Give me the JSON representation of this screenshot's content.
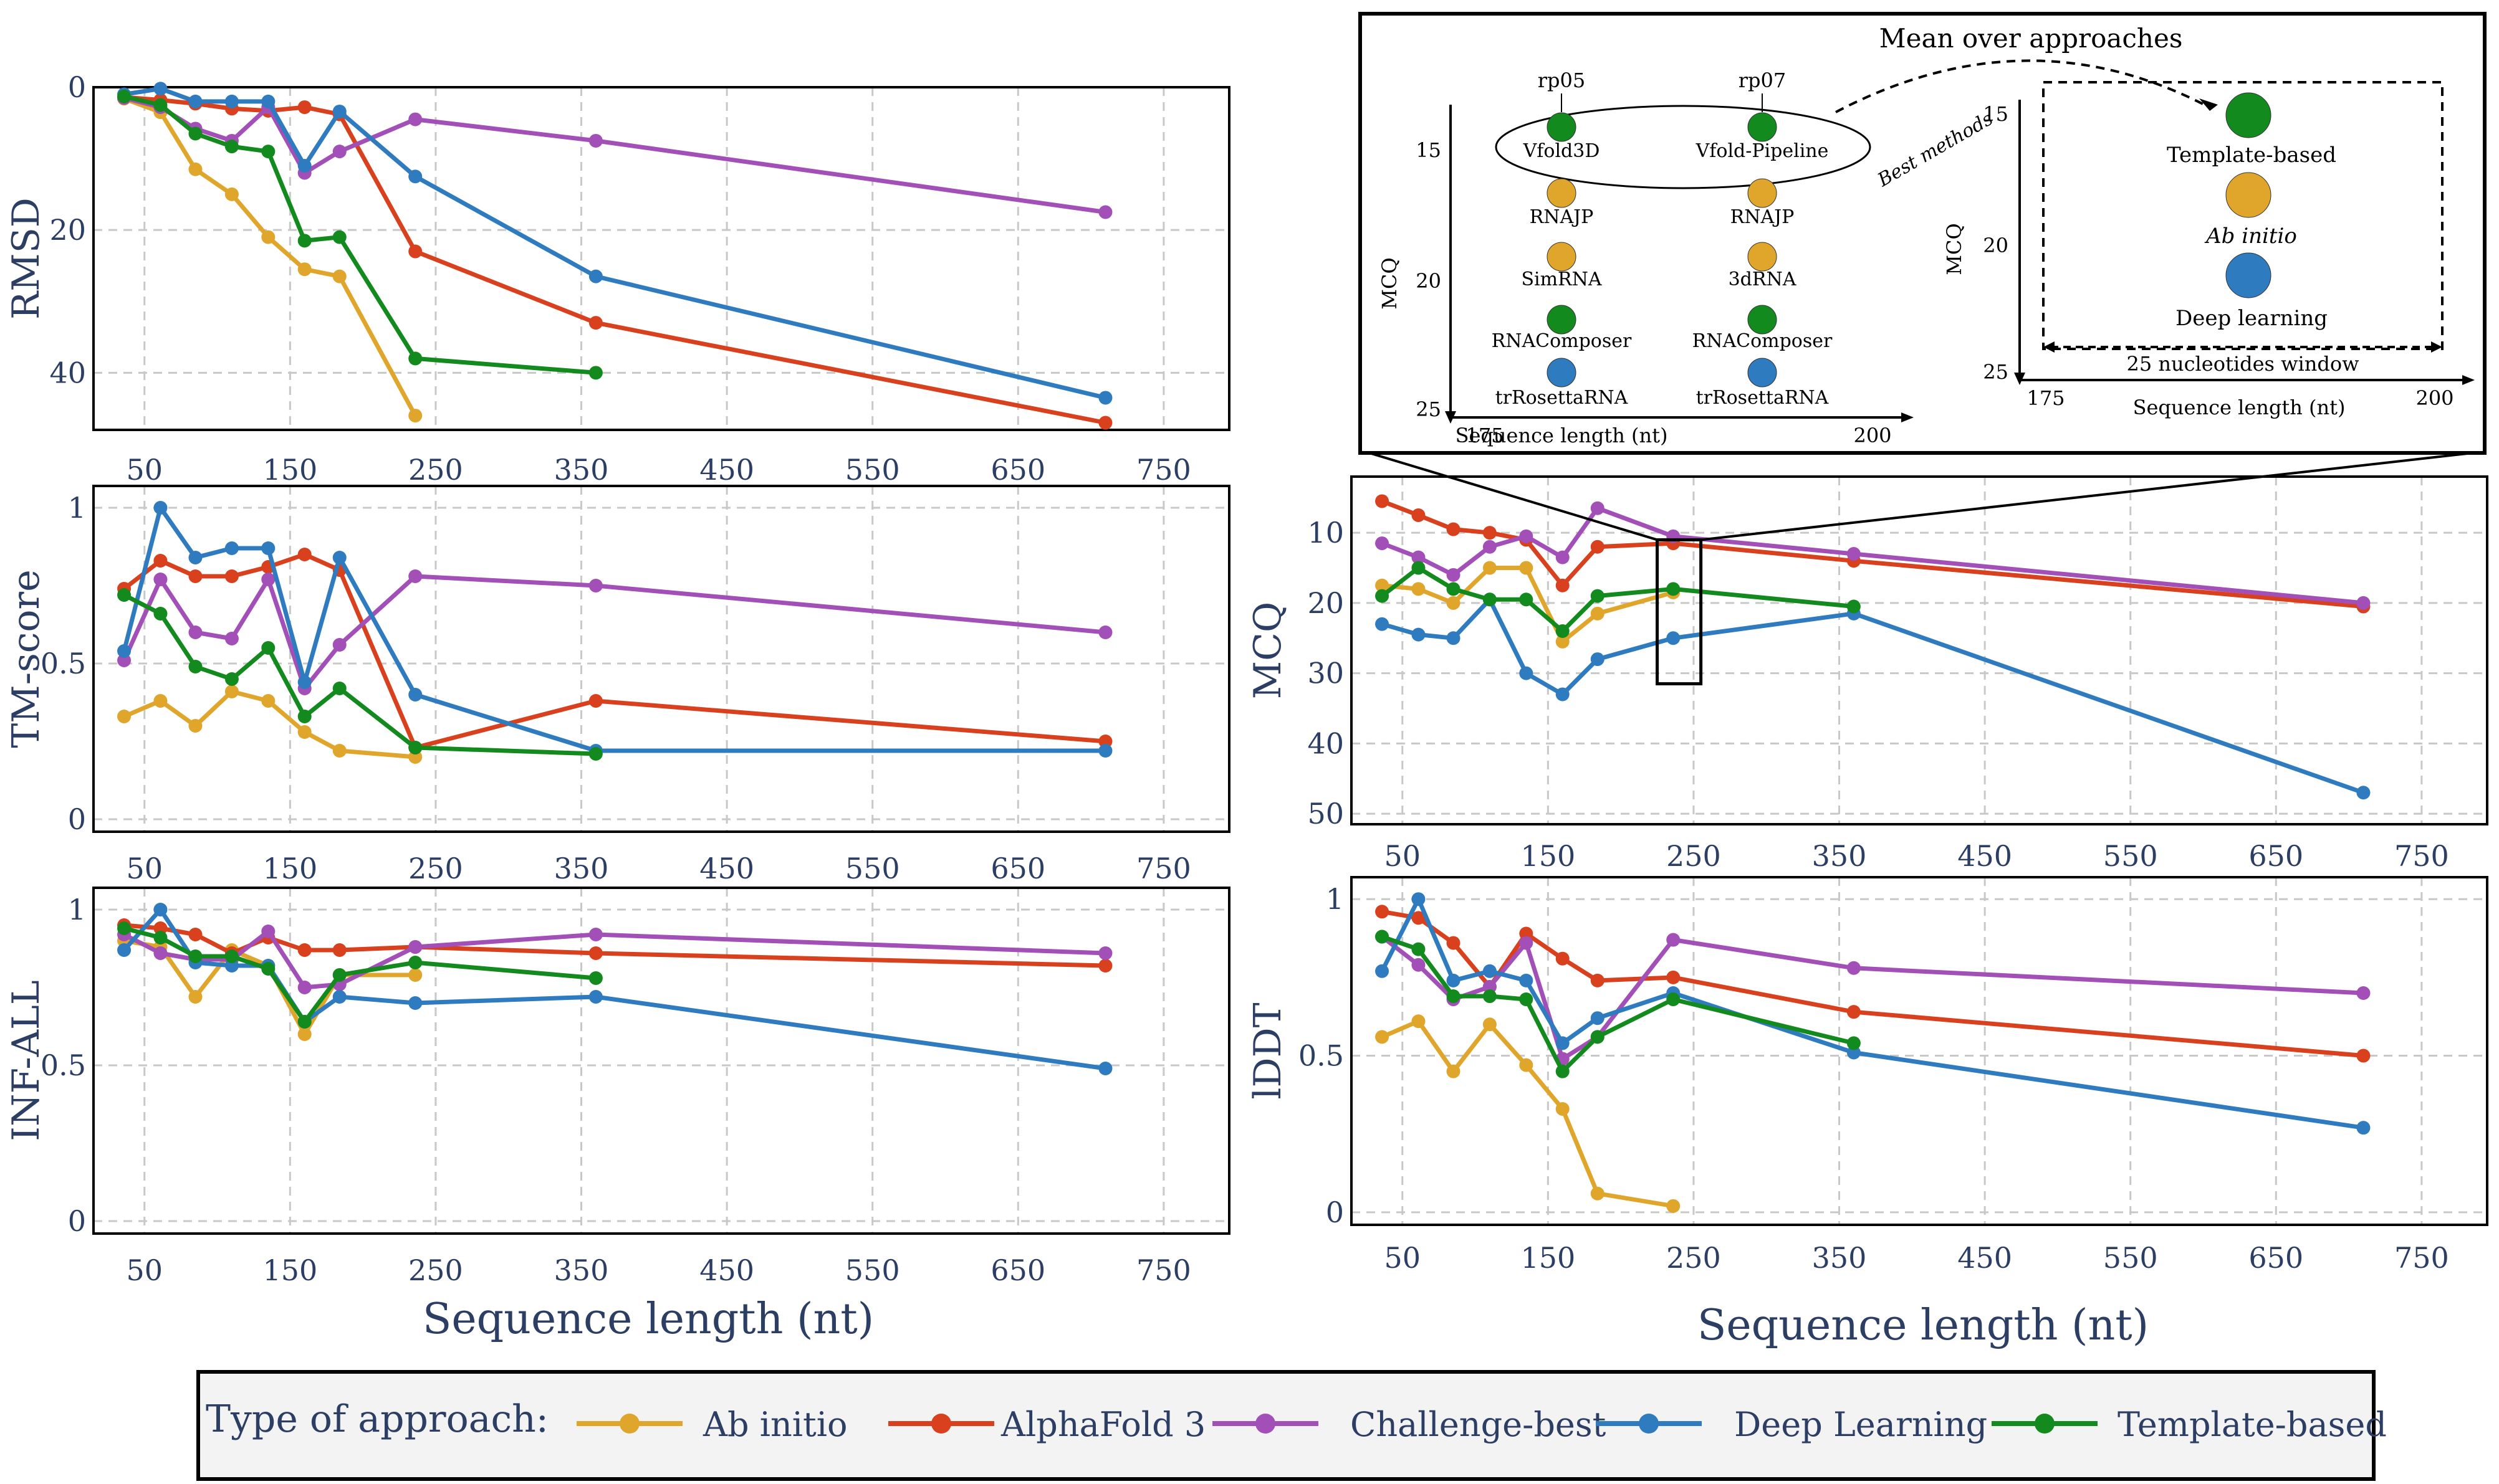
{
  "colors": {
    "Ab initio": "#E0A62B",
    "AlphaFold 3": "#D8401E",
    "Challenge-best": "#A24FB8",
    "Deep Learning": "#2E7BBF",
    "Template-based": "#138A1E",
    "axis": "#2C3E63",
    "grid": "#C8C8C8"
  },
  "legend": {
    "title": "Type of approach:",
    "items": [
      "Ab initio",
      "AlphaFold 3",
      "Challenge-best",
      "Deep Learning",
      "Template-based"
    ]
  },
  "left_xlabel": "Sequence length (nt)",
  "right_xlabel": "Sequence length (nt)",
  "chart_data": [
    {
      "id": "rmsd",
      "type": "line",
      "ylabel": "RMSD",
      "xlim": [
        15,
        795
      ],
      "xticks": [
        50,
        150,
        250,
        350,
        450,
        550,
        650,
        750
      ],
      "ylim": [
        0,
        48
      ],
      "ylim_inverted": true,
      "yticks": [
        0,
        20,
        40
      ],
      "grid": true,
      "series": [
        {
          "name": "Ab initio",
          "x": [
            36,
            61,
            85,
            110,
            135,
            160,
            184,
            236
          ],
          "y": [
            1.6,
            3.5,
            11.5,
            15,
            21,
            25.5,
            26.5,
            46
          ]
        },
        {
          "name": "AlphaFold 3",
          "x": [
            36,
            61,
            85,
            110,
            135,
            160,
            184,
            236,
            360,
            710
          ],
          "y": [
            1.4,
            1.8,
            2.3,
            3,
            3.3,
            2.8,
            3.8,
            23,
            33,
            47
          ]
        },
        {
          "name": "Challenge-best",
          "x": [
            36,
            61,
            85,
            110,
            135,
            160,
            184,
            236,
            360,
            710
          ],
          "y": [
            1.5,
            2.8,
            5.8,
            7.5,
            2.8,
            12,
            9,
            4.5,
            7.5,
            17.5
          ]
        },
        {
          "name": "Deep Learning",
          "x": [
            36,
            61,
            85,
            110,
            135,
            160,
            184,
            236,
            360,
            710
          ],
          "y": [
            1,
            0.2,
            2,
            2,
            2,
            11,
            3.4,
            12.5,
            26.5,
            43.5
          ]
        },
        {
          "name": "Template-based",
          "x": [
            36,
            61,
            85,
            110,
            135,
            160,
            184,
            236,
            360
          ],
          "y": [
            1.3,
            2.5,
            6.5,
            8.3,
            9,
            21.5,
            21,
            38,
            40
          ]
        }
      ]
    },
    {
      "id": "tm",
      "type": "line",
      "ylabel": "TM-score",
      "xlim": [
        15,
        795
      ],
      "xticks": [
        50,
        150,
        250,
        350,
        450,
        550,
        650,
        750
      ],
      "ylim": [
        -0.04,
        1.07
      ],
      "ylim_inverted": false,
      "yticks": [
        0,
        0.5,
        1
      ],
      "grid": true,
      "series": [
        {
          "name": "Ab initio",
          "x": [
            36,
            61,
            85,
            110,
            135,
            160,
            184,
            236
          ],
          "y": [
            0.33,
            0.38,
            0.3,
            0.41,
            0.38,
            0.28,
            0.22,
            0.2
          ]
        },
        {
          "name": "AlphaFold 3",
          "x": [
            36,
            61,
            85,
            110,
            135,
            160,
            184,
            236,
            360,
            710
          ],
          "y": [
            0.74,
            0.83,
            0.78,
            0.78,
            0.81,
            0.85,
            0.8,
            0.23,
            0.38,
            0.25
          ]
        },
        {
          "name": "Challenge-best",
          "x": [
            36,
            61,
            85,
            110,
            135,
            160,
            184,
            236,
            360,
            710
          ],
          "y": [
            0.51,
            0.77,
            0.6,
            0.58,
            0.77,
            0.42,
            0.56,
            0.78,
            0.75,
            0.6
          ]
        },
        {
          "name": "Deep Learning",
          "x": [
            36,
            61,
            85,
            110,
            135,
            160,
            184,
            236,
            360,
            710
          ],
          "y": [
            0.54,
            1.0,
            0.84,
            0.87,
            0.87,
            0.44,
            0.84,
            0.4,
            0.22,
            0.22
          ]
        },
        {
          "name": "Template-based",
          "x": [
            36,
            61,
            85,
            110,
            135,
            160,
            184,
            236,
            360
          ],
          "y": [
            0.72,
            0.66,
            0.49,
            0.45,
            0.55,
            0.33,
            0.42,
            0.23,
            0.21
          ]
        }
      ]
    },
    {
      "id": "inf",
      "type": "line",
      "ylabel": "INF-ALL",
      "xlim": [
        15,
        795
      ],
      "xticks": [
        50,
        150,
        250,
        350,
        450,
        550,
        650,
        750
      ],
      "ylim": [
        -0.04,
        1.07
      ],
      "ylim_inverted": false,
      "yticks": [
        0,
        0.5,
        1
      ],
      "grid": true,
      "series": [
        {
          "name": "Ab initio",
          "x": [
            36,
            61,
            85,
            110,
            135,
            160,
            184,
            236
          ],
          "y": [
            0.9,
            0.88,
            0.72,
            0.87,
            0.82,
            0.6,
            0.79,
            0.79
          ]
        },
        {
          "name": "AlphaFold 3",
          "x": [
            36,
            61,
            85,
            110,
            135,
            160,
            184,
            236,
            360,
            710
          ],
          "y": [
            0.95,
            0.94,
            0.92,
            0.86,
            0.91,
            0.87,
            0.87,
            0.88,
            0.86,
            0.82
          ]
        },
        {
          "name": "Challenge-best",
          "x": [
            36,
            61,
            85,
            110,
            135,
            160,
            184,
            236,
            360,
            710
          ],
          "y": [
            0.92,
            0.86,
            0.84,
            0.84,
            0.93,
            0.75,
            0.76,
            0.88,
            0.92,
            0.86
          ]
        },
        {
          "name": "Deep Learning",
          "x": [
            36,
            61,
            85,
            110,
            135,
            160,
            184,
            236,
            360,
            710
          ],
          "y": [
            0.87,
            1.0,
            0.83,
            0.82,
            0.82,
            0.64,
            0.72,
            0.7,
            0.72,
            0.49
          ]
        },
        {
          "name": "Template-based",
          "x": [
            36,
            61,
            85,
            110,
            135,
            160,
            184,
            236,
            360
          ],
          "y": [
            0.94,
            0.91,
            0.85,
            0.85,
            0.81,
            0.64,
            0.79,
            0.83,
            0.78
          ]
        }
      ]
    },
    {
      "id": "mcq",
      "type": "line",
      "ylabel": "MCQ",
      "xlim": [
        15,
        795
      ],
      "xticks": [
        50,
        150,
        250,
        350,
        450,
        550,
        650,
        750
      ],
      "ylim": [
        2,
        51.5
      ],
      "ylim_inverted": true,
      "yticks": [
        10,
        20,
        30,
        40,
        50
      ],
      "grid": true,
      "annotation_box": {
        "x": [
          225,
          255
        ],
        "y": [
          11,
          31.5
        ]
      },
      "series": [
        {
          "name": "Ab initio",
          "x": [
            36,
            61,
            85,
            110,
            135,
            160,
            184,
            236
          ],
          "y": [
            17.5,
            18,
            20,
            15,
            15,
            25.5,
            21.5,
            18.5
          ]
        },
        {
          "name": "AlphaFold 3",
          "x": [
            36,
            61,
            85,
            110,
            135,
            160,
            184,
            236,
            360,
            710
          ],
          "y": [
            5.5,
            7.5,
            9.5,
            10,
            11,
            17.5,
            12,
            11.5,
            14,
            20.5
          ]
        },
        {
          "name": "Challenge-best",
          "x": [
            36,
            61,
            85,
            110,
            135,
            160,
            184,
            236,
            360,
            710
          ],
          "y": [
            11.5,
            13.5,
            16,
            12,
            10.5,
            13.5,
            6.5,
            10.5,
            13,
            20
          ]
        },
        {
          "name": "Deep Learning",
          "x": [
            36,
            61,
            85,
            110,
            135,
            160,
            184,
            236,
            360,
            710
          ],
          "y": [
            23,
            24.5,
            25,
            19.5,
            30,
            33,
            28,
            25,
            21.5,
            47
          ]
        },
        {
          "name": "Template-based",
          "x": [
            36,
            61,
            85,
            110,
            135,
            160,
            184,
            236,
            360
          ],
          "y": [
            19,
            15,
            18,
            19.5,
            19.5,
            24,
            19,
            18,
            20.5
          ]
        }
      ]
    },
    {
      "id": "lddt",
      "type": "line",
      "ylabel": "lDDT",
      "xlim": [
        15,
        795
      ],
      "xticks": [
        50,
        150,
        250,
        350,
        450,
        550,
        650,
        750
      ],
      "ylim": [
        -0.04,
        1.07
      ],
      "ylim_inverted": false,
      "yticks": [
        0,
        0.5,
        1
      ],
      "grid": true,
      "series": [
        {
          "name": "Ab initio",
          "x": [
            36,
            61,
            85,
            110,
            135,
            160,
            184,
            236
          ],
          "y": [
            0.56,
            0.61,
            0.45,
            0.6,
            0.47,
            0.33,
            0.06,
            0.02
          ]
        },
        {
          "name": "AlphaFold 3",
          "x": [
            36,
            61,
            85,
            110,
            135,
            160,
            184,
            236,
            360,
            710
          ],
          "y": [
            0.96,
            0.94,
            0.86,
            0.72,
            0.89,
            0.81,
            0.74,
            0.75,
            0.64,
            0.5
          ]
        },
        {
          "name": "Challenge-best",
          "x": [
            36,
            61,
            85,
            110,
            135,
            160,
            184,
            236,
            360,
            710
          ],
          "y": [
            0.88,
            0.79,
            0.68,
            0.72,
            0.86,
            0.49,
            0.56,
            0.87,
            0.78,
            0.7
          ]
        },
        {
          "name": "Deep Learning",
          "x": [
            36,
            61,
            85,
            110,
            135,
            160,
            184,
            236,
            360,
            710
          ],
          "y": [
            0.77,
            1.0,
            0.74,
            0.77,
            0.74,
            0.54,
            0.62,
            0.7,
            0.51,
            0.27
          ]
        },
        {
          "name": "Template-based",
          "x": [
            36,
            61,
            85,
            110,
            135,
            160,
            184,
            236,
            360
          ],
          "y": [
            0.88,
            0.84,
            0.69,
            0.69,
            0.68,
            0.45,
            0.56,
            0.68,
            0.54
          ]
        }
      ]
    }
  ],
  "inset": {
    "title": "Mean over approaches",
    "left": {
      "xlabel": "Sequence length (nt)",
      "ylabel": "MCQ",
      "xticks": [
        "175",
        "200"
      ],
      "yticks": [
        "15",
        "20",
        "25"
      ],
      "best_label": "Best methods",
      "columns": [
        {
          "header": "rp05",
          "methods": [
            {
              "name": "Vfold3D",
              "type": "Template-based"
            },
            {
              "name": "RNAJP",
              "type": "Ab initio"
            },
            {
              "name": "SimRNA",
              "type": "Ab initio"
            },
            {
              "name": "RNAComposer",
              "type": "Template-based"
            },
            {
              "name": "trRosettaRNA",
              "type": "Deep Learning"
            }
          ]
        },
        {
          "header": "rp07",
          "methods": [
            {
              "name": "Vfold-Pipeline",
              "type": "Template-based"
            },
            {
              "name": "RNAJP",
              "type": "Ab initio"
            },
            {
              "name": "3dRNA",
              "type": "Ab initio"
            },
            {
              "name": "RNAComposer",
              "type": "Template-based"
            },
            {
              "name": "trRosettaRNA",
              "type": "Deep Learning"
            }
          ]
        }
      ]
    },
    "right": {
      "xlabel": "Sequence length (nt)",
      "ylabel": "MCQ",
      "xticks": [
        "175",
        "200"
      ],
      "yticks": [
        "15",
        "20",
        "25"
      ],
      "window_label": "25 nucleotides window",
      "points": [
        {
          "label": "Template-based",
          "type": "Template-based",
          "italic": false
        },
        {
          "label": "Ab initio",
          "type": "Ab initio",
          "italic": true
        },
        {
          "label": "Deep learning",
          "type": "Deep Learning",
          "italic": false
        }
      ]
    }
  }
}
